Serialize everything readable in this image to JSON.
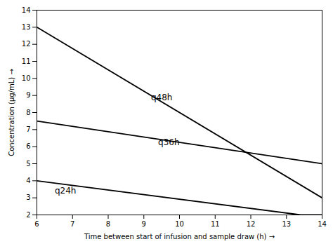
{
  "chart_data": {
    "type": "line",
    "series": [
      {
        "name": "q48h",
        "x": [
          6,
          14
        ],
        "values": [
          13.0,
          3.0
        ],
        "color": "#000000"
      },
      {
        "name": "q36h",
        "x": [
          6,
          14
        ],
        "values": [
          7.5,
          5.0
        ],
        "color": "#000000"
      },
      {
        "name": "q24h",
        "x": [
          6,
          13.4,
          14
        ],
        "values": [
          4.0,
          2.0,
          2.0
        ],
        "color": "#000000"
      }
    ],
    "annotations": [
      {
        "text": "q48h",
        "x": 9.2,
        "y": 8.7
      },
      {
        "text": "q36h",
        "x": 9.4,
        "y": 6.1
      },
      {
        "text": "q24h",
        "x": 6.5,
        "y": 3.25
      }
    ],
    "xlabel": "Time between start of infusion and sample draw (h)",
    "ylabel": "Concentration (μg/mL)",
    "xlim": [
      6,
      14
    ],
    "ylim": [
      2,
      14
    ],
    "xticks": [
      6,
      7,
      8,
      9,
      10,
      11,
      12,
      13,
      14
    ],
    "yticks": [
      2,
      3,
      4,
      5,
      6,
      7,
      8,
      9,
      10,
      11,
      12,
      13,
      14
    ],
    "grid": false
  }
}
